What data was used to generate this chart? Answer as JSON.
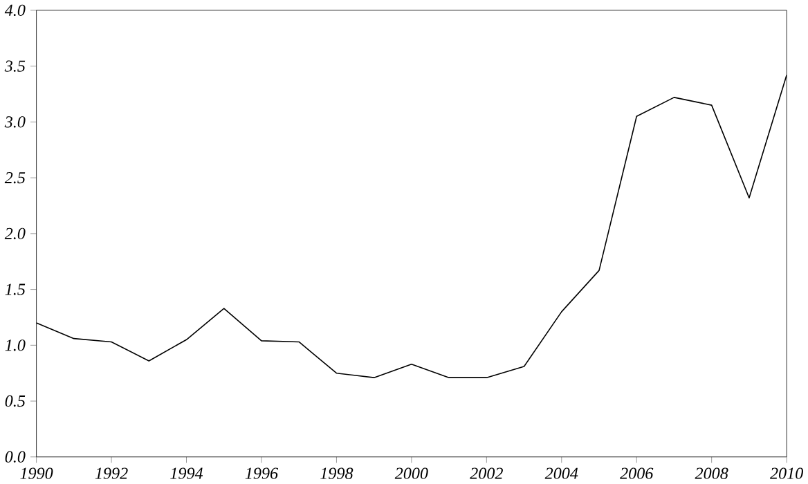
{
  "chart_data": {
    "type": "line",
    "x": [
      1990,
      1991,
      1992,
      1993,
      1994,
      1995,
      1996,
      1997,
      1998,
      1999,
      2000,
      2001,
      2002,
      2003,
      2004,
      2005,
      2006,
      2007,
      2008,
      2009,
      2010
    ],
    "values": [
      1.2,
      1.06,
      1.03,
      0.86,
      1.05,
      1.33,
      1.04,
      1.03,
      0.75,
      0.71,
      0.83,
      0.71,
      0.71,
      0.81,
      1.3,
      1.67,
      3.05,
      3.22,
      3.15,
      2.32,
      3.42
    ],
    "color": "#000000",
    "xlim": [
      1990,
      2010
    ],
    "xticks": [
      1990,
      1992,
      1994,
      1996,
      1998,
      2000,
      2002,
      2004,
      2006,
      2008,
      2010
    ],
    "ylim": [
      0,
      4
    ],
    "yticks": [
      {
        "value": 0,
        "label": "0.0"
      },
      0.5,
      {
        "value": 1,
        "label": "1.0"
      },
      1.5,
      {
        "value": 2,
        "label": "2.0"
      },
      2.5,
      {
        "value": 3,
        "label": "3.0"
      },
      3.5,
      {
        "value": 4,
        "label": "4.0"
      }
    ],
    "grid": false,
    "marker": "none",
    "line_style": "solid"
  }
}
